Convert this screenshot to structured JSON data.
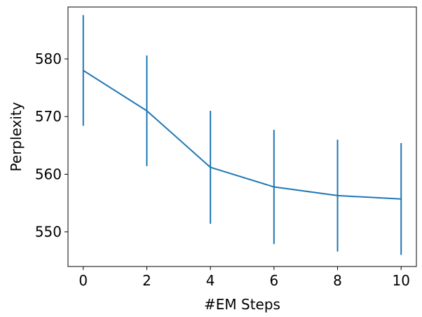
{
  "chart_data": {
    "type": "line",
    "title": "",
    "xlabel": "#EM Steps",
    "ylabel": "Perplexity",
    "x": [
      0,
      2,
      4,
      6,
      8,
      10
    ],
    "series": [
      {
        "values": [
          578.0,
          571.0,
          561.2,
          557.8,
          556.3,
          555.7
        ],
        "error": [
          9.6,
          9.6,
          9.8,
          9.9,
          9.7,
          9.7
        ],
        "color": "#1f77b4"
      }
    ],
    "xlim": [
      -0.48,
      10.48
    ],
    "ylim": [
      544.0,
      589.0
    ],
    "xticks": [
      0,
      2,
      4,
      6,
      8,
      10
    ],
    "yticks": [
      550,
      560,
      570,
      580
    ],
    "grid": false,
    "legend": "none"
  }
}
